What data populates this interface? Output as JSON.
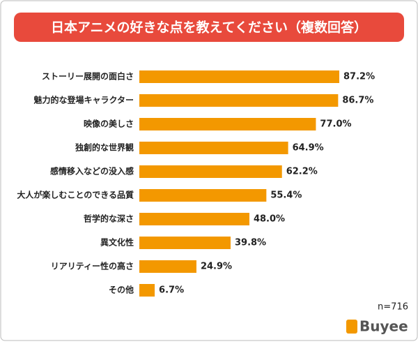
{
  "chart_data": {
    "type": "bar",
    "orientation": "horizontal",
    "title": "日本アニメの好きな点を教えてください（複数回答）",
    "categories": [
      "ストーリー展開の面白さ",
      "魅力的な登場キャラクター",
      "映像の美しさ",
      "独創的な世界観",
      "感情移入などの没入感",
      "大人が楽しむことのできる品質",
      "哲学的な深さ",
      "異文化性",
      "リアリティー性の高さ",
      "その他"
    ],
    "values": [
      87.2,
      86.7,
      77.0,
      64.9,
      62.2,
      55.4,
      48.0,
      39.8,
      24.9,
      6.7
    ],
    "value_labels": [
      "87.2%",
      "86.7%",
      "77.0%",
      "64.9%",
      "62.2%",
      "55.4%",
      "48.0%",
      "39.8%",
      "24.9%",
      "6.7%"
    ],
    "color": "#f39800",
    "annotation": "n=716",
    "logo": "Buyee"
  }
}
